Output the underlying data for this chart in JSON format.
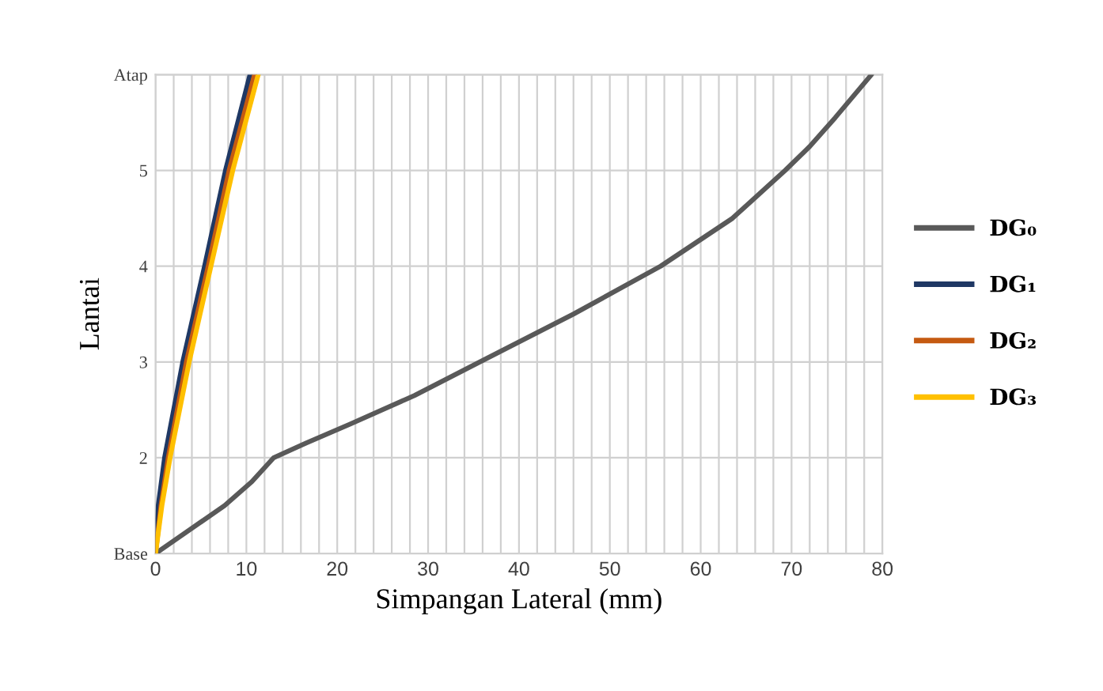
{
  "chart_data": {
    "type": "line",
    "xlabel": "Simpangan Lateral (mm)",
    "ylabel": "Lantai",
    "xlim": [
      0,
      80
    ],
    "xticks": [
      0,
      {
        "value": 2,
        "label": null
      },
      {
        "value": 4,
        "label": null
      },
      {
        "value": 6,
        "label": null
      },
      {
        "value": 8,
        "label": null
      },
      10,
      {
        "value": 12,
        "label": null
      },
      {
        "value": 14,
        "label": null
      },
      {
        "value": 16,
        "label": null
      },
      {
        "value": 18,
        "label": null
      },
      20,
      {
        "value": 22,
        "label": null
      },
      {
        "value": 24,
        "label": null
      },
      {
        "value": 26,
        "label": null
      },
      {
        "value": 28,
        "label": null
      },
      30,
      {
        "value": 32,
        "label": null
      },
      {
        "value": 34,
        "label": null
      },
      {
        "value": 36,
        "label": null
      },
      {
        "value": 38,
        "label": null
      },
      40,
      {
        "value": 42,
        "label": null
      },
      {
        "value": 44,
        "label": null
      },
      {
        "value": 46,
        "label": null
      },
      {
        "value": 48,
        "label": null
      },
      50,
      {
        "value": 52,
        "label": null
      },
      {
        "value": 54,
        "label": null
      },
      {
        "value": 56,
        "label": null
      },
      {
        "value": 58,
        "label": null
      },
      60,
      {
        "value": 62,
        "label": null
      },
      {
        "value": 64,
        "label": null
      },
      {
        "value": 66,
        "label": null
      },
      {
        "value": 68,
        "label": null
      },
      70,
      {
        "value": 72,
        "label": null
      },
      {
        "value": 74,
        "label": null
      },
      {
        "value": 76,
        "label": null
      },
      {
        "value": 78,
        "label": null
      },
      80
    ],
    "ylim": [
      1,
      6
    ],
    "yticks": [
      {
        "value": 1,
        "label": "Base"
      },
      2,
      3,
      4,
      5,
      {
        "value": 6,
        "label": "Atap"
      }
    ],
    "grid": true,
    "legend": "right",
    "marker": "none",
    "line_style": "solid",
    "series": [
      {
        "name": "DG₀",
        "color": "#595959",
        "x": [
          0,
          3.8,
          7.6,
          10.6,
          13,
          16.5,
          21.4,
          28.5,
          35.7,
          46,
          55.6,
          63.5,
          69.3,
          72,
          74.8,
          78.8
        ],
        "values": [
          1,
          1.25,
          1.5,
          1.75,
          2,
          2.15,
          2.35,
          2.65,
          3,
          3.5,
          4,
          4.5,
          5,
          5.25,
          5.55,
          6
        ]
      },
      {
        "name": "DG₁",
        "color": "#1f3864",
        "x": [
          0,
          0.3,
          1.0,
          3.0,
          5.4,
          7.7,
          10.4
        ],
        "values": [
          1,
          1.5,
          2,
          3,
          4,
          5,
          6
        ]
      },
      {
        "name": "DG₂",
        "color": "#c55a11",
        "x": [
          0,
          0.6,
          1.4,
          3.4,
          5.8,
          8.1,
          10.9
        ],
        "values": [
          1,
          1.5,
          2,
          3,
          4,
          5,
          6
        ]
      },
      {
        "name": "DG₃",
        "color": "#ffc000",
        "x": [
          0,
          0.7,
          1.6,
          3.7,
          6.1,
          8.5,
          11.3
        ],
        "values": [
          1,
          1.5,
          2,
          3,
          4,
          5,
          6
        ]
      }
    ]
  }
}
